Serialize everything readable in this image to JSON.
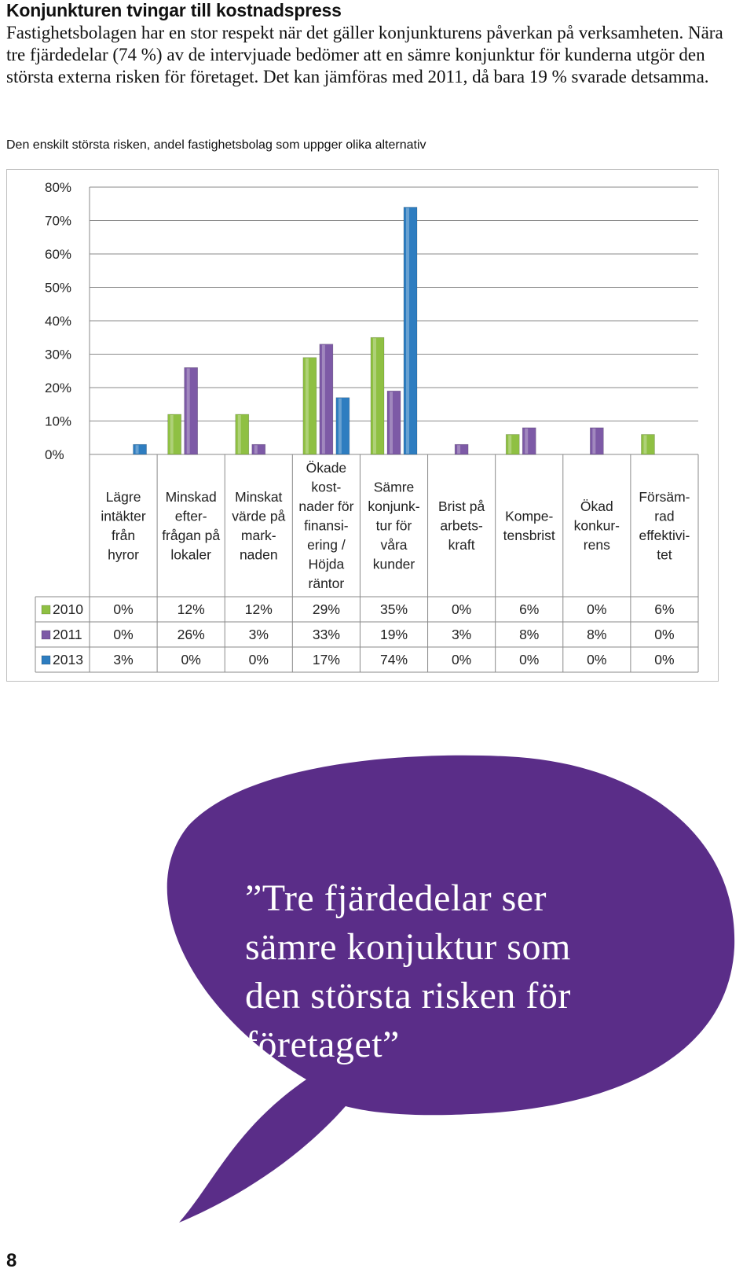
{
  "heading": "Konjunkturen tvingar till kostnadspress",
  "intro": "Fastighetsbolagen har en stor respekt när det gäller konjunkturens påverkan på verksamheten. Nära tre fjärdedelar (74 %) av de intervjuade bedömer att en sämre konjunktur för kunderna utgör den största externa risken för företaget. Det kan jämföras med 2011, då bara 19 % svarade detsamma.",
  "caption": "Den enskilt största risken, andel fastighetsbolag som uppger olika alternativ",
  "chart_data": {
    "type": "bar",
    "title": "",
    "xlabel": "",
    "ylabel": "",
    "ylim": [
      0,
      80
    ],
    "yticks": [
      "0%",
      "10%",
      "20%",
      "30%",
      "40%",
      "50%",
      "60%",
      "70%",
      "80%"
    ],
    "grid": true,
    "legend": "data-table",
    "categories": [
      [
        "Lägre",
        "intäkter",
        "från",
        "hyror"
      ],
      [
        "Minskad",
        "efter-",
        "frågan på",
        "lokaler"
      ],
      [
        "Minskat",
        "värde på",
        "mark-",
        "naden"
      ],
      [
        "Ökade",
        "kost-",
        "nader för",
        "finansi-",
        "ering /",
        "Höjda",
        "räntor"
      ],
      [
        "Sämre",
        "konjunk-",
        "tur för",
        "våra",
        "kunder"
      ],
      [
        "Brist på",
        "arbets-",
        "kraft"
      ],
      [
        "Kompe-",
        "tensbrist"
      ],
      [
        "Ökad",
        "konkur-",
        "rens"
      ],
      [
        "Försäm-",
        "rad",
        "effektivi-",
        "tet"
      ]
    ],
    "series": [
      {
        "name": "2010",
        "color": "#8fc043",
        "values": [
          0,
          12,
          12,
          29,
          35,
          0,
          6,
          0,
          6
        ],
        "labels": [
          "0%",
          "12%",
          "12%",
          "29%",
          "35%",
          "0%",
          "6%",
          "0%",
          "6%"
        ]
      },
      {
        "name": "2011",
        "color": "#7d5aa6",
        "values": [
          0,
          26,
          3,
          33,
          19,
          3,
          8,
          8,
          0
        ],
        "labels": [
          "0%",
          "26%",
          "3%",
          "33%",
          "19%",
          "3%",
          "8%",
          "8%",
          "0%"
        ]
      },
      {
        "name": "2013",
        "color": "#2e7dc0",
        "values": [
          3,
          0,
          0,
          17,
          74,
          0,
          0,
          0,
          0
        ],
        "labels": [
          "3%",
          "0%",
          "0%",
          "17%",
          "74%",
          "0%",
          "0%",
          "0%",
          "0%"
        ]
      }
    ]
  },
  "quote": [
    "”Tre fjärdedelar ser",
    "sämre konjuktur som",
    "den största risken för",
    "företaget”"
  ],
  "page_number": "8",
  "colors": {
    "bubble": "#5a2d88"
  }
}
